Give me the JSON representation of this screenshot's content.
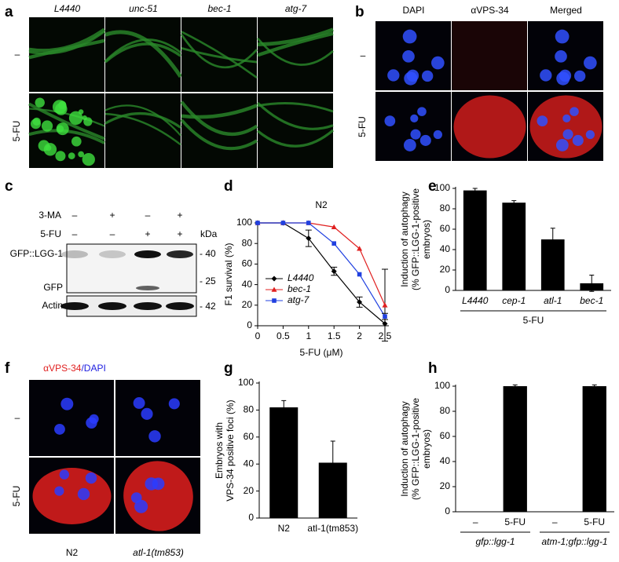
{
  "panels": {
    "a": {
      "letter": "a",
      "columns": [
        "L4440",
        "unc-51",
        "bec-1",
        "atg-7"
      ],
      "rows": [
        "–",
        "5-FU"
      ]
    },
    "b": {
      "letter": "b",
      "columns": [
        "DAPI",
        "αVPS-34",
        "Merged"
      ],
      "rows": [
        "–",
        "5-FU"
      ]
    },
    "c": {
      "letter": "c",
      "rows": [
        {
          "label": "3-MA",
          "signs": [
            "–",
            "+",
            "–",
            "+"
          ]
        },
        {
          "label": "5-FU",
          "signs": [
            "–",
            "–",
            "+",
            "+"
          ]
        }
      ],
      "unit": "kDa",
      "bands": [
        "GFP::LGG-1",
        "GFP",
        "Actin"
      ],
      "markers": [
        "- 40",
        "- 25",
        "- 42"
      ]
    },
    "f": {
      "letter": "f",
      "title_parts": [
        "αVPS-34",
        "/DAPI"
      ],
      "rows": [
        "–",
        "5-FU"
      ],
      "columns": [
        "N2",
        "atl-1(tm853)"
      ]
    }
  },
  "chart_data": [
    {
      "type": "line",
      "panel": "d",
      "title": "N2",
      "xlabel": "5-FU (μM)",
      "ylabel": [
        "F1 survival (%)"
      ],
      "x": [
        0,
        0.5,
        1,
        1.5,
        2,
        2.5
      ],
      "xlim": [
        0,
        2.5
      ],
      "xticks": [
        0,
        0.5,
        1,
        1.5,
        2,
        2.5
      ],
      "ylim": [
        0,
        100
      ],
      "yticks": [
        0,
        20,
        40,
        60,
        80,
        100
      ],
      "legend": "lower-left",
      "series": [
        {
          "name": "L4440",
          "color": "#000000",
          "marker": "diamond",
          "values": [
            100,
            100,
            85,
            53,
            23,
            2
          ],
          "errors": [
            null,
            null,
            8,
            4,
            5,
            null
          ]
        },
        {
          "name": "bec-1",
          "color": "#e02020",
          "marker": "triangle",
          "values": [
            100,
            100,
            100,
            96,
            75,
            20
          ],
          "errors": [
            null,
            null,
            null,
            null,
            null,
            35
          ]
        },
        {
          "name": "atg-7",
          "color": "#2040e0",
          "marker": "square",
          "values": [
            100,
            100,
            100,
            80,
            50,
            9
          ],
          "errors": [
            null,
            null,
            null,
            null,
            null,
            3
          ]
        }
      ]
    },
    {
      "type": "bar",
      "panel": "e",
      "ylabel": [
        "Induction of autophagy",
        "(% GFP::LGG-1-positive",
        "embryos)"
      ],
      "categories": [
        "L4440",
        "cep-1",
        "atl-1",
        "bec-1"
      ],
      "values": [
        98,
        86,
        50,
        7
      ],
      "errors": [
        2,
        2,
        11,
        8
      ],
      "groups": [
        "5-FU"
      ],
      "color": "#000000",
      "ylim": [
        0,
        100
      ],
      "yticks": [
        0,
        20,
        40,
        60,
        80,
        100
      ]
    },
    {
      "type": "bar",
      "panel": "g",
      "ylabel": [
        "Embryos with",
        "VPS-34 positive foci (%)"
      ],
      "categories": [
        "N2",
        "atl-1(tm853)"
      ],
      "values": [
        82,
        41
      ],
      "errors": [
        5,
        16
      ],
      "color": "#000000",
      "ylim": [
        0,
        100
      ],
      "yticks": [
        0,
        20,
        40,
        60,
        80,
        100
      ]
    },
    {
      "type": "bar",
      "panel": "h",
      "ylabel": [
        "Induction of autophagy",
        "(% GFP::LGG-1-positive",
        "embryos)"
      ],
      "categories": [
        "–",
        "5-FU",
        "–",
        "5-FU"
      ],
      "values": [
        0,
        100,
        0,
        100
      ],
      "errors": [
        null,
        1,
        null,
        1
      ],
      "groups": [
        "gfp::lgg-1",
        "atm-1;gfp::lgg-1"
      ],
      "color": "#000000",
      "ylim": [
        0,
        100
      ],
      "yticks": [
        0,
        20,
        40,
        60,
        80,
        100
      ]
    }
  ]
}
